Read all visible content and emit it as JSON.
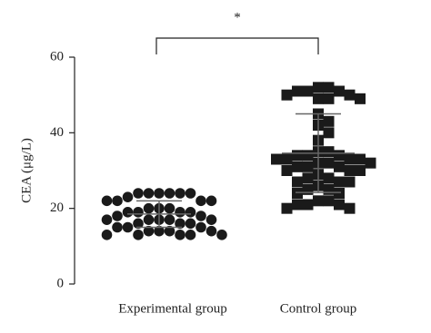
{
  "chart_data": {
    "type": "dot",
    "y_label": "CEA (μg/L)",
    "annotation": "*",
    "categories": [
      "Experimental group",
      "Control group"
    ],
    "groups": [
      {
        "marker": "circle",
        "color": "#1a1a1a",
        "mean": 18.5,
        "sd": 3.5,
        "values": [
          24,
          24,
          24,
          24,
          24,
          24,
          23,
          22,
          22,
          22,
          22,
          20,
          20,
          20,
          19,
          19,
          19,
          19,
          18,
          18,
          17,
          17,
          17,
          17,
          17,
          16,
          16,
          16,
          15,
          15,
          15,
          14,
          14,
          14,
          14,
          13,
          13,
          13,
          13,
          13
        ]
      },
      {
        "marker": "square",
        "color": "#1a1a1a",
        "mean": 34.6,
        "sd": 10.4,
        "values": [
          52,
          52,
          51,
          51,
          51,
          50,
          50,
          49,
          49,
          49,
          45,
          43,
          42,
          40,
          38,
          35,
          35,
          34,
          34,
          34,
          33,
          33,
          33,
          33,
          32,
          32,
          32,
          31,
          31,
          31,
          30,
          30,
          30,
          29,
          28,
          28,
          27,
          27,
          27,
          26,
          25,
          25,
          24,
          24,
          22,
          22,
          21,
          21,
          21,
          20,
          20
        ]
      }
    ],
    "ylim": [
      0,
      60
    ],
    "yticks": [
      0,
      20,
      40,
      60
    ]
  }
}
